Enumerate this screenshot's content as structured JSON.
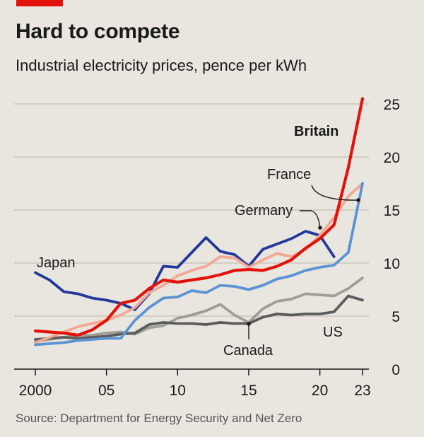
{
  "header": {
    "title": "Hard to compete",
    "subtitle": "Industrial electricity prices, pence per kWh"
  },
  "footer": {
    "source": "Source: Department for Energy Security and Net Zero"
  },
  "chart_data": {
    "type": "line",
    "title": "Hard to compete",
    "subtitle": "Industrial electricity prices, pence per kWh",
    "xlabel": "",
    "ylabel": "",
    "xlim": [
      2000,
      2023
    ],
    "ylim": [
      0,
      25
    ],
    "y_ticks": [
      0,
      5,
      10,
      15,
      20,
      25
    ],
    "x_ticks": [
      2000,
      2005,
      2010,
      2015,
      2020,
      2023
    ],
    "x_tick_labels": [
      "2000",
      "05",
      "10",
      "15",
      "20",
      "23"
    ],
    "grid": true,
    "y_axis_side": "right",
    "x": [
      2000,
      2001,
      2002,
      2003,
      2004,
      2005,
      2006,
      2007,
      2008,
      2009,
      2010,
      2011,
      2012,
      2013,
      2014,
      2015,
      2016,
      2017,
      2018,
      2019,
      2020,
      2021,
      2022,
      2023
    ],
    "series": [
      {
        "name": "Japan",
        "color": "#22389a",
        "values": [
          9.1,
          8.4,
          7.3,
          7.1,
          6.7,
          6.5,
          6.2,
          5.6,
          7.1,
          9.7,
          9.6,
          11.0,
          12.4,
          11.1,
          10.8,
          9.7,
          11.3,
          11.8,
          12.3,
          13.0,
          12.6,
          10.6,
          null,
          null
        ]
      },
      {
        "name": "Canada",
        "color": "#9e9e97",
        "values": [
          2.6,
          2.8,
          3.0,
          3.2,
          3.2,
          3.4,
          3.5,
          3.3,
          3.9,
          4.1,
          4.8,
          5.1,
          5.5,
          6.1,
          5.1,
          4.4,
          5.7,
          6.4,
          6.6,
          7.1,
          7.0,
          6.9,
          7.6,
          8.6
        ]
      },
      {
        "name": "US",
        "color": "#5c5c5c",
        "values": [
          2.8,
          2.9,
          3.0,
          2.9,
          3.0,
          3.1,
          3.3,
          3.4,
          4.2,
          4.4,
          4.3,
          4.3,
          4.2,
          4.4,
          4.3,
          4.3,
          4.9,
          5.2,
          5.1,
          5.2,
          5.2,
          5.4,
          6.9,
          6.5
        ]
      },
      {
        "name": "Germany",
        "color": "#f2a894",
        "values": [
          2.5,
          3.0,
          3.5,
          4.0,
          4.3,
          4.6,
          5.1,
          5.8,
          7.2,
          7.9,
          8.8,
          9.3,
          9.7,
          10.6,
          10.5,
          9.6,
          10.3,
          10.9,
          10.6,
          11.3,
          12.6,
          14.3,
          16.3,
          17.5
        ]
      },
      {
        "name": "France",
        "color": "#5b93d4",
        "values": [
          2.3,
          2.4,
          2.5,
          2.7,
          2.8,
          2.9,
          2.9,
          4.6,
          5.8,
          6.7,
          6.8,
          7.4,
          7.2,
          7.9,
          7.8,
          7.5,
          7.9,
          8.5,
          8.8,
          9.3,
          9.6,
          9.8,
          11.0,
          17.5
        ]
      },
      {
        "name": "Britain",
        "color": "#e3120b",
        "values": [
          3.6,
          3.5,
          3.4,
          3.2,
          3.7,
          4.6,
          6.2,
          6.5,
          7.6,
          8.4,
          8.2,
          8.4,
          8.6,
          8.9,
          9.3,
          9.4,
          9.3,
          9.7,
          10.3,
          11.4,
          12.3,
          13.6,
          19.0,
          25.5
        ]
      }
    ],
    "annotations": [
      {
        "label": "Britain",
        "bold": true
      },
      {
        "label": "France"
      },
      {
        "label": "Germany"
      },
      {
        "label": "Japan"
      },
      {
        "label": "US"
      },
      {
        "label": "Canada"
      }
    ]
  }
}
